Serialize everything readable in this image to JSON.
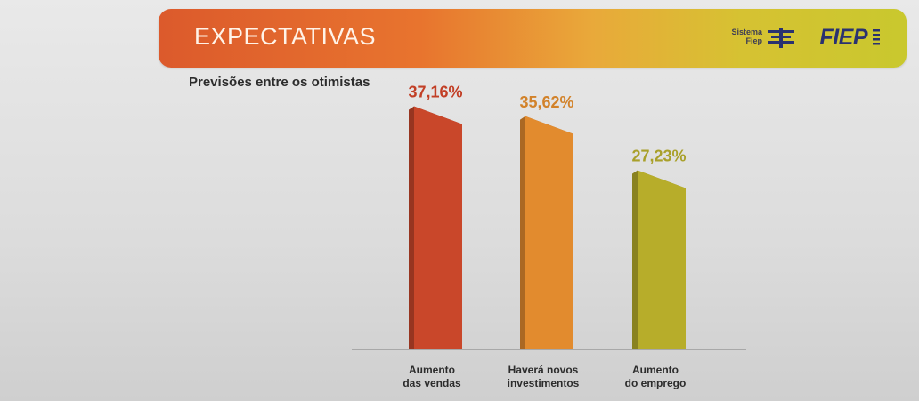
{
  "header": {
    "title": "EXPECTATIVAS",
    "brand_line1": "Sistema",
    "brand_line2": "Fiep",
    "brand_name": "FIEP"
  },
  "chart_data": {
    "type": "bar",
    "title": "Previsões entre os otimistas",
    "categories": [
      [
        "Aumento",
        "das vendas"
      ],
      [
        "Haverá novos",
        "investimentos"
      ],
      [
        "Aumento",
        "do emprego"
      ]
    ],
    "values": [
      37.16,
      35.62,
      27.23
    ],
    "value_labels": [
      "37,16%",
      "35,62%",
      "27,23%"
    ],
    "colors": [
      "#c9472a",
      "#e28b2e",
      "#b7ad2a"
    ],
    "label_colors": [
      "#c23f26",
      "#d2822a",
      "#a9a02a"
    ],
    "ylim": [
      0,
      40
    ],
    "grid": false,
    "legend": "none"
  }
}
